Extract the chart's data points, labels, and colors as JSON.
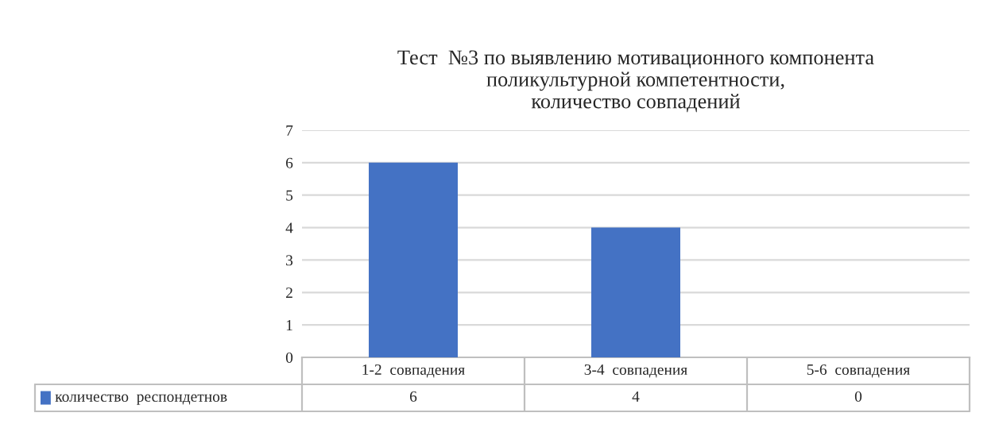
{
  "chart_data": {
    "type": "bar",
    "title": "Тест  №3 по выявлению мотивационного компонента\nполикультурной компетентности,\nколичество совпадений",
    "categories": [
      "1-2  совпадения",
      "3-4  совпадения",
      "5-6  совпадения"
    ],
    "series": [
      {
        "name": "количество  респондетнов",
        "color": "#4472c4",
        "values": [
          6,
          4,
          0
        ]
      }
    ],
    "ylim": [
      0,
      7
    ],
    "yticks": [
      0,
      1,
      2,
      3,
      4,
      5,
      6,
      7
    ],
    "grid": "y",
    "data_labels": true
  }
}
